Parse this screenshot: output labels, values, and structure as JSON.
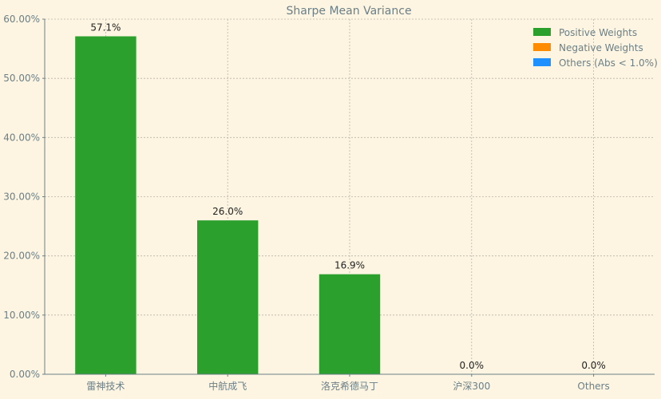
{
  "chart_data": {
    "type": "bar",
    "title": "Sharpe Mean Variance",
    "categories": [
      "雷神技术",
      "中航成飞",
      "洛克希德马丁",
      "沪深300",
      "Others"
    ],
    "values": [
      57.1,
      26.0,
      16.9,
      0.0,
      0.0
    ],
    "value_labels": [
      "57.1%",
      "26.0%",
      "16.9%",
      "0.0%",
      "0.0%"
    ],
    "ylim": [
      0,
      60
    ],
    "yticks": [
      0,
      10,
      20,
      30,
      40,
      50,
      60
    ],
    "ytick_labels": [
      "0.00%",
      "10.00%",
      "20.00%",
      "30.00%",
      "40.00%",
      "50.00%",
      "60.00%"
    ],
    "xlabel": "",
    "ylabel": "",
    "grid": true,
    "legend_position": "top-right",
    "series": [
      {
        "name": "Positive Weights",
        "color": "#2ca02c"
      },
      {
        "name": "Negative Weights",
        "color": "#ff8c00"
      },
      {
        "name": "Others (Abs < 1.0%)",
        "color": "#1e90ff"
      }
    ],
    "bar_color": "#2ca02c"
  }
}
